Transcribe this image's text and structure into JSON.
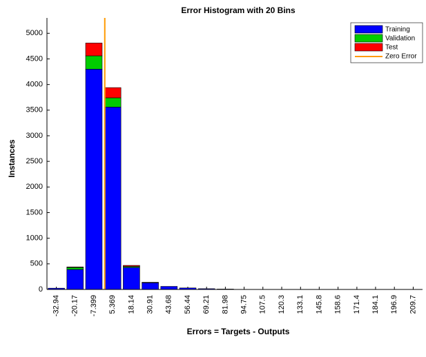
{
  "chart_data": {
    "type": "histogram",
    "title": "Error Histogram with 20 Bins",
    "xlabel": "Errors = Targets - Outputs",
    "ylabel": "Instances",
    "bins": [
      -39.32,
      -26.56,
      -13.79,
      -1.01,
      11.75,
      24.52,
      37.29,
      50.06,
      62.83,
      75.6,
      88.37,
      101.13,
      113.9,
      126.67,
      139.44,
      152.21,
      164.98,
      177.75,
      190.52,
      203.29,
      216.05
    ],
    "xticks": [
      -32.94,
      -20.17,
      -7.399,
      5.369,
      18.14,
      30.91,
      43.68,
      56.44,
      69.21,
      81.98,
      94.75,
      107.5,
      120.3,
      133.1,
      145.8,
      158.6,
      171.4,
      184.1,
      196.9,
      209.7
    ],
    "xlim": [
      -39.32,
      216.05
    ],
    "ylim": [
      0,
      5300
    ],
    "yticks": [
      0,
      500,
      1000,
      1500,
      2000,
      2500,
      3000,
      3500,
      4000,
      4500,
      5000
    ],
    "stacked": true,
    "series": [
      {
        "name": "Training",
        "color": "#0000ff",
        "values": [
          25,
          390,
          4300,
          3560,
          430,
          130,
          60,
          30,
          15,
          8,
          0,
          0,
          0,
          0,
          0,
          0,
          0,
          0,
          0,
          0
        ]
      },
      {
        "name": "Validation",
        "color": "#00cc00",
        "values": [
          0,
          40,
          260,
          180,
          20,
          5,
          0,
          0,
          0,
          0,
          0,
          0,
          0,
          0,
          0,
          0,
          0,
          0,
          0,
          0
        ]
      },
      {
        "name": "Test",
        "color": "#ff0000",
        "values": [
          0,
          10,
          250,
          200,
          20,
          5,
          0,
          0,
          0,
          0,
          0,
          0,
          0,
          0,
          0,
          0,
          0,
          0,
          0,
          0
        ]
      }
    ],
    "reference_line": {
      "name": "Zero Error",
      "color": "#ff9900",
      "x": 0
    },
    "legend": "upper-right"
  }
}
